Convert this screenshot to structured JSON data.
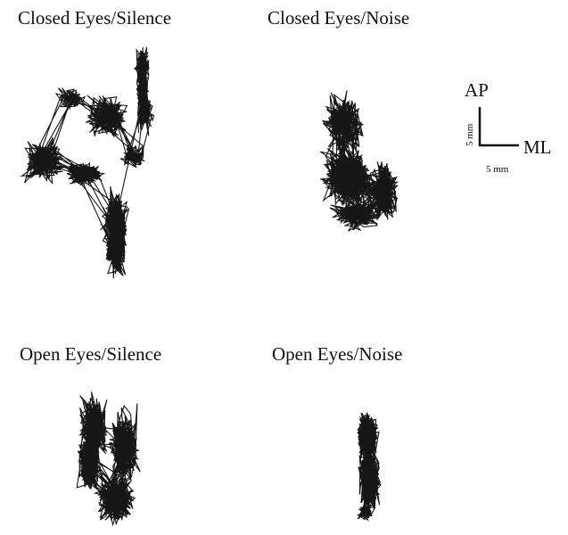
{
  "panels": [
    {
      "title": "Closed Eyes/Silence"
    },
    {
      "title": "Closed Eyes/Noise"
    },
    {
      "title": "Open Eyes/Silence"
    },
    {
      "title": "Open Eyes/Noise"
    }
  ],
  "scale_bar": {
    "vertical_axis": "AP",
    "horizontal_axis": "ML",
    "vertical_length": "5 mm",
    "horizontal_length": "5 mm"
  }
}
